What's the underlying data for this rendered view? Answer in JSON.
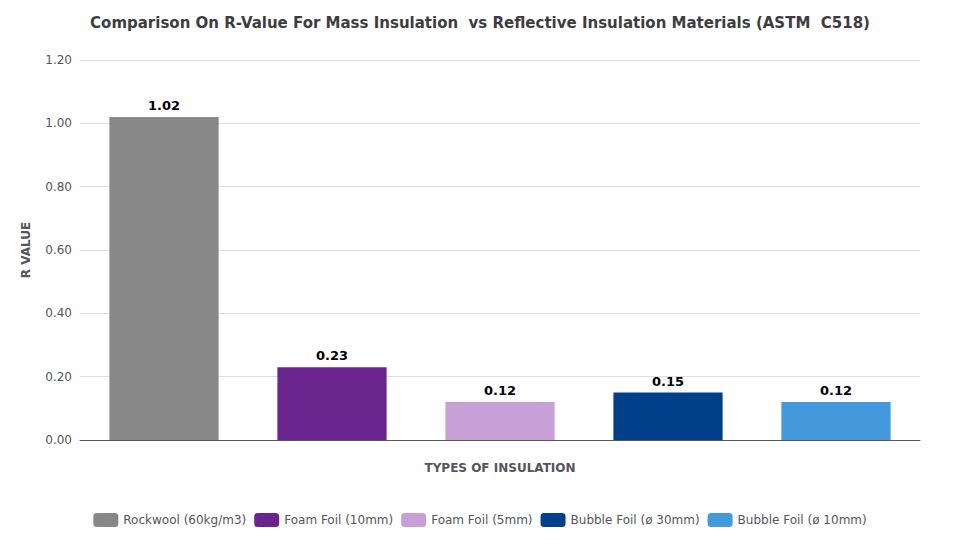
{
  "chart_data": {
    "type": "bar",
    "title": "Comparison On R-Value For Mass Insulation  vs Reflective Insulation Materials (ASTM  C518)",
    "xlabel": "TYPES OF INSULATION",
    "ylabel": "R VALUE",
    "categories": [
      null,
      null,
      null,
      null,
      null
    ],
    "series": [
      {
        "name": "Rockwool (60kg/m3)",
        "color": "#888888",
        "values": [
          1.02,
          null,
          null,
          null,
          null
        ]
      },
      {
        "name": "Foam Foil (10mm)",
        "color": "#6B238E",
        "values": [
          null,
          0.23,
          null,
          null,
          null
        ]
      },
      {
        "name": "Foam Foil (5mm)",
        "color": "#C8A0D8",
        "values": [
          null,
          null,
          0.12,
          null,
          null
        ]
      },
      {
        "name": "Bubble Foil (ø 30mm)",
        "color": "#003F8A",
        "values": [
          null,
          null,
          null,
          0.15,
          null
        ]
      },
      {
        "name": "Bubble Foil (ø 10mm)",
        "color": "#4499DD",
        "values": [
          null,
          null,
          null,
          null,
          0.12
        ]
      }
    ],
    "ylim": [
      0,
      1.2
    ],
    "yticks": [
      {
        "value": 0,
        "label": "0.00"
      },
      {
        "value": 0.2,
        "label": "0.20"
      },
      {
        "value": 0.4,
        "label": "0.40"
      },
      {
        "value": 0.6,
        "label": "0.60"
      },
      {
        "value": 0.8,
        "label": "0.80"
      },
      {
        "value": 1.0,
        "label": "1.00"
      },
      {
        "value": 1.2,
        "label": "1.20"
      }
    ],
    "grid": true,
    "legend": "bottom",
    "data_labels": true
  }
}
